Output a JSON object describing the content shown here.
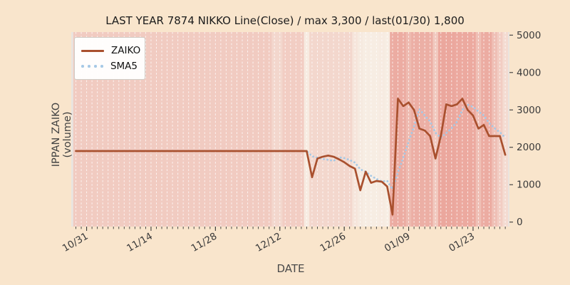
{
  "title": "LAST YEAR 7874 NIKKO Line(Close) / max 3,300 / last(01/30) 1,800",
  "axes": {
    "xlabel": "DATE",
    "ylabel": "IPPAN ZAIKO (volume)",
    "yticks": [
      0,
      1000,
      2000,
      3000,
      4000,
      5000
    ],
    "ylim": [
      0,
      5000
    ],
    "grid": "vertical-dashed-white",
    "y_axis_side": "right",
    "x_tick_rotation_deg": 30
  },
  "legend": {
    "position": "upper-left",
    "items": [
      {
        "label": "ZAIKO",
        "color": "#a9502e",
        "style": "solid"
      },
      {
        "label": "SMA5",
        "color": "#a6c9e6",
        "style": "dotted"
      }
    ]
  },
  "colors": {
    "figure_background": "#f9e5cc",
    "plot_background": "#e9e5e1",
    "heat_low": "#f8f3e9",
    "heat_high": "#e8948a",
    "zaiko_line": "#a9502e",
    "sma5_line": "#a6c9e6",
    "tick_text": "#3a3a3a",
    "title_text": "#1c1c1c",
    "axis_label_text": "#4a4a4a",
    "gridline": "rgba(255,255,255,0.75)"
  },
  "chart_data": {
    "type": "line",
    "title": "LAST YEAR 7874 NIKKO Line(Close) / max 3,300 / last(01/30) 1,800",
    "xlabel": "DATE",
    "ylabel": "IPPAN ZAIKO (volume)",
    "ylim": [
      0,
      5000
    ],
    "x_tick_labels": [
      "10/31",
      "11/14",
      "11/28",
      "12/12",
      "12/26",
      "01/09",
      "01/23"
    ],
    "x_tick_indices": [
      2,
      14,
      26,
      38,
      50,
      62,
      74
    ],
    "n_points": 81,
    "max_label": "max 3,300",
    "last_label": "last(01/30) 1,800",
    "series": [
      {
        "name": "ZAIKO",
        "values": [
          1900,
          1900,
          1900,
          1900,
          1900,
          1900,
          1900,
          1900,
          1900,
          1900,
          1900,
          1900,
          1900,
          1900,
          1900,
          1900,
          1900,
          1900,
          1900,
          1900,
          1900,
          1900,
          1900,
          1900,
          1900,
          1900,
          1900,
          1900,
          1900,
          1900,
          1900,
          1900,
          1900,
          1900,
          1900,
          1900,
          1900,
          1900,
          1900,
          1900,
          1900,
          1900,
          1900,
          1900,
          1200,
          1700,
          1750,
          1780,
          1750,
          1680,
          1600,
          1500,
          1430,
          850,
          1350,
          1050,
          1100,
          1080,
          950,
          200,
          3300,
          3100,
          3200,
          3000,
          2500,
          2450,
          2300,
          1700,
          2300,
          3150,
          3100,
          3150,
          3300,
          3000,
          2850,
          2500,
          2600,
          2300,
          2300,
          2300,
          1800
        ]
      },
      {
        "name": "SMA5",
        "derived_from": "ZAIKO",
        "derivation": "rolling_mean",
        "window": 5
      }
    ],
    "background_heat": [
      0.42,
      0.42,
      0.42,
      0.42,
      0.42,
      0.42,
      0.42,
      0.42,
      0.42,
      0.42,
      0.42,
      0.42,
      0.42,
      0.42,
      0.42,
      0.42,
      0.42,
      0.42,
      0.42,
      0.42,
      0.42,
      0.42,
      0.42,
      0.42,
      0.42,
      0.42,
      0.42,
      0.42,
      0.42,
      0.42,
      0.42,
      0.42,
      0.42,
      0.42,
      0.42,
      0.42,
      0.42,
      0.3,
      0.3,
      0.4,
      0.4,
      0.4,
      0.4,
      0.08,
      0.3,
      0.3,
      0.3,
      0.3,
      0.3,
      0.3,
      0.3,
      0.3,
      0.15,
      0.1,
      0.06,
      0.06,
      0.06,
      0.08,
      0.06,
      0.75,
      0.75,
      0.75,
      0.6,
      0.72,
      0.72,
      0.72,
      0.72,
      0.45,
      0.8,
      0.8,
      0.8,
      0.78,
      0.78,
      0.78,
      0.78,
      0.55,
      0.75,
      0.75,
      0.55,
      0.4,
      0.25
    ]
  }
}
